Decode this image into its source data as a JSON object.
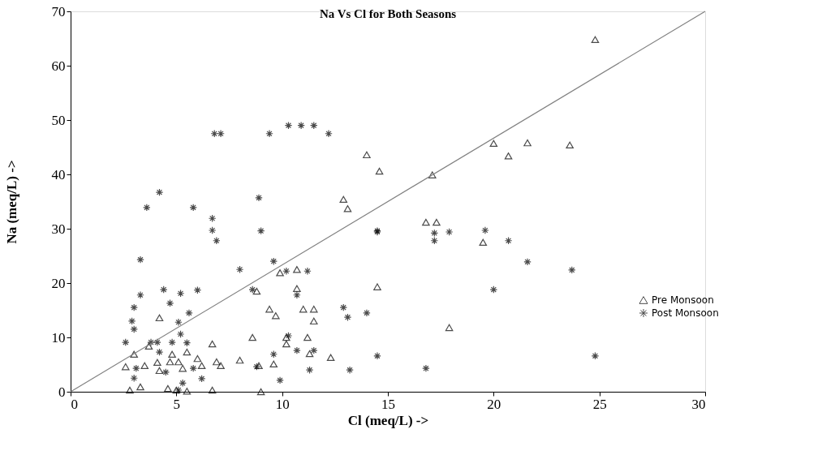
{
  "chart_data": {
    "type": "scatter",
    "title": "Na Vs Cl for Both Seasons",
    "xlabel": "Cl (meq/L) ->",
    "ylabel": "Na (meq/L) ->",
    "xlim": [
      0,
      30
    ],
    "ylim": [
      0,
      70
    ],
    "xticks": [
      0,
      5,
      10,
      15,
      20,
      25,
      30
    ],
    "yticks": [
      0,
      10,
      20,
      30,
      40,
      50,
      60,
      70
    ],
    "grid": false,
    "legend": "right",
    "series": [
      {
        "name": "Pre Monsoon",
        "color": "#000000",
        "marker": "triangle",
        "x": [
          4.2,
          6.7,
          3.0,
          3.7,
          4.8,
          5.5,
          2.6,
          3.5,
          4.1,
          4.7,
          5.1,
          6.0,
          6.2,
          6.9,
          7.1,
          4.2,
          5.3,
          2.8,
          3.3,
          4.6,
          5.0,
          6.7,
          5.5,
          13.1,
          12.9,
          9.9,
          10.7,
          8.8,
          10.7,
          14.5,
          9.4,
          9.7,
          11.0,
          11.5,
          11.5,
          8.6,
          10.2,
          10.2,
          11.2,
          11.3,
          12.3,
          9.6,
          8.9,
          8.0,
          9.0,
          24.8,
          14.0,
          14.6,
          17.1,
          20.0,
          20.7,
          21.6,
          23.6,
          16.8,
          17.3,
          19.5,
          17.9
        ],
        "values": [
          13.6,
          8.8,
          6.9,
          8.4,
          6.9,
          7.3,
          4.6,
          4.8,
          5.4,
          5.5,
          5.5,
          6.1,
          4.8,
          5.5,
          4.8,
          3.9,
          4.3,
          0.3,
          0.9,
          0.6,
          0.3,
          0.3,
          0.1,
          33.7,
          35.4,
          21.9,
          22.5,
          18.5,
          19.0,
          19.3,
          15.2,
          14.0,
          15.2,
          15.2,
          13.0,
          10.0,
          10.0,
          8.8,
          10.0,
          7.0,
          6.3,
          5.1,
          4.8,
          5.8,
          0,
          64.8,
          43.6,
          40.6,
          39.9,
          45.7,
          43.4,
          45.8,
          45.4,
          31.2,
          31.2,
          27.5,
          11.8
        ]
      },
      {
        "name": "Post Monsoon",
        "color": "#000000",
        "marker": "cross",
        "x": [
          6.8,
          7.1,
          9.4,
          10.3,
          10.9,
          11.5,
          12.2,
          4.2,
          3.6,
          5.8,
          6.7,
          6.7,
          6.9,
          3.3,
          4.4,
          3.3,
          5.2,
          6.0,
          4.7,
          3.0,
          5.6,
          2.9,
          3.0,
          5.1,
          2.6,
          3.8,
          4.1,
          4.8,
          5.5,
          5.2,
          4.2,
          3.1,
          4.5,
          3.0,
          5.8,
          6.2,
          5.3,
          5.1,
          8.9,
          9.0,
          9.6,
          8.0,
          10.2,
          11.2,
          8.6,
          10.7,
          12.9,
          13.1,
          14.0,
          14.5,
          10.3,
          10.7,
          11.5,
          9.6,
          8.8,
          11.3,
          13.2,
          14.5,
          9.9,
          14.5,
          17.2,
          17.2,
          17.9,
          19.6,
          20.7,
          21.6,
          23.7,
          20.0,
          16.8,
          24.8
        ],
        "values": [
          47.5,
          47.5,
          47.5,
          49,
          49,
          49,
          47.5,
          36.7,
          33.9,
          33.9,
          31.9,
          29.7,
          27.8,
          24.3,
          18.8,
          17.8,
          18.1,
          18.7,
          16.3,
          15.5,
          14.5,
          13.0,
          11.5,
          12.8,
          9.1,
          9.1,
          9.1,
          9.1,
          9.0,
          10.6,
          7.3,
          4.3,
          3.6,
          2.5,
          4.3,
          2.4,
          1.6,
          0.3,
          35.7,
          29.6,
          24.0,
          22.5,
          22.2,
          22.2,
          18.8,
          17.8,
          15.5,
          13.7,
          14.5,
          29.6,
          10.3,
          7.6,
          7.6,
          6.9,
          4.6,
          4.0,
          4.0,
          6.6,
          2.1,
          29.4,
          29.2,
          27.8,
          29.4,
          29.7,
          27.8,
          23.9,
          22.4,
          18.8,
          4.3,
          6.6
        ]
      },
      {
        "type": "line",
        "color": "#808080",
        "x": [
          0,
          30
        ],
        "values": [
          0,
          70
        ]
      }
    ]
  }
}
